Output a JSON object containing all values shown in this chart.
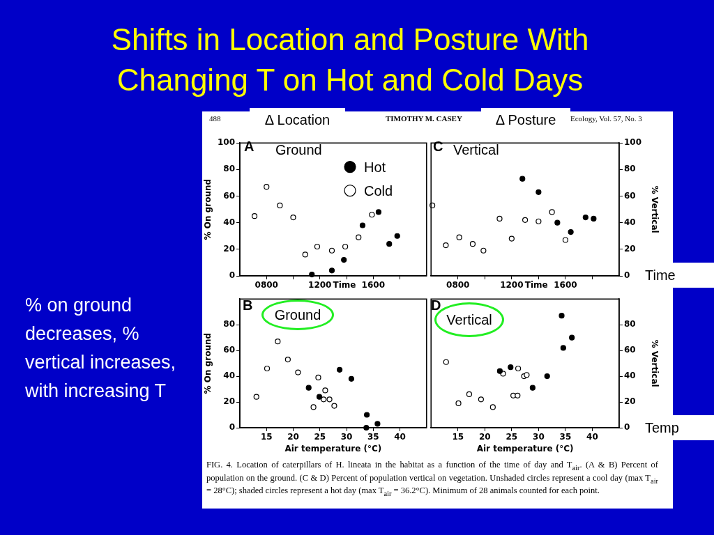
{
  "chart_data": [
    {
      "type": "scatter",
      "title": "Shifts in Location and Posture With Changing T on Hot and Cold Days",
      "xlabel": "Time",
      "ylabel": "% On ground",
      "xlim": [
        600,
        2000
      ],
      "xticks": [
        {
          "value": 800,
          "label": "0800"
        },
        {
          "value": 1000,
          "label": null
        },
        {
          "value": 1200,
          "label": "1200"
        },
        {
          "value": 1400,
          "label": null
        },
        {
          "value": 1600,
          "label": "1600"
        },
        {
          "value": 1800,
          "label": null
        }
      ],
      "ylim": [
        0,
        100
      ],
      "yticks": [
        0,
        20,
        40,
        60,
        80,
        100
      ],
      "marker": "circle",
      "legend": "top",
      "series": [
        {
          "name": "Hot",
          "color": "#000000",
          "x": [
            1140,
            1290,
            1380,
            1520,
            1640,
            1720,
            1780
          ],
          "values": [
            1,
            4,
            12,
            38,
            48,
            24,
            30
          ]
        },
        {
          "name": "Cold",
          "color": "#ffffff",
          "x": [
            710,
            800,
            900,
            1000,
            1090,
            1180,
            1290,
            1390,
            1490,
            1590
          ],
          "values": [
            45,
            67,
            53,
            44,
            16,
            22,
            19,
            22,
            29,
            46
          ]
        }
      ],
      "annotations": [
        "% on ground decreases, % vertical increases,  with increasing T",
        "488",
        "Δ Location",
        "A",
        "Ground"
      ]
    },
    {
      "type": "scatter",
      "xlabel": "Time",
      "y2label": "% Vertical",
      "xlim": [
        600,
        2000
      ],
      "xticks": [
        {
          "value": 800,
          "label": "0800"
        },
        {
          "value": 1000,
          "label": null
        },
        {
          "value": 1200,
          "label": "1200"
        },
        {
          "value": 1400,
          "label": null
        },
        {
          "value": 1600,
          "label": "1600"
        },
        {
          "value": 1800,
          "label": null
        }
      ],
      "y2lim": [
        0,
        100
      ],
      "y2ticks": [
        0,
        20,
        40,
        60,
        80,
        100
      ],
      "marker": "circle",
      "series": [
        {
          "color": "#000000",
          "axis": "y2",
          "x": [
            1280,
            1400,
            1540,
            1640,
            1750,
            1810
          ],
          "values": [
            73,
            63,
            40,
            33,
            44,
            43
          ]
        },
        {
          "color": "#ffffff",
          "axis": "y2",
          "x": [
            610,
            710,
            810,
            910,
            990,
            1110,
            1200,
            1300,
            1400,
            1500,
            1600
          ],
          "values": [
            53,
            23,
            29,
            24,
            19,
            43,
            28,
            42,
            41,
            48,
            27
          ]
        }
      ],
      "annotations": [
        "TIMOTHY M. CASEY",
        "Ecology, Vol. 57, No. 3",
        "Δ Posture",
        "C",
        "Vertical",
        "Time"
      ]
    },
    {
      "type": "scatter",
      "xlabel": "Air temperature (°C)",
      "ylabel": "% On ground",
      "xlim": [
        10,
        45
      ],
      "xticks": [
        15,
        20,
        25,
        30,
        35,
        40
      ],
      "ylim": [
        0,
        100
      ],
      "yticks": [
        0,
        20,
        40,
        60,
        80
      ],
      "marker": "circle",
      "series": [
        {
          "color": "#000000",
          "x": [
            22.9,
            24.9,
            28.7,
            30.9,
            33.8,
            33.7,
            35.8
          ],
          "values": [
            31,
            24,
            45,
            38,
            10,
            0,
            3
          ]
        },
        {
          "color": "#ffffff",
          "x": [
            13.1,
            15.1,
            17.1,
            19.0,
            20.9,
            24.7,
            23.8,
            26.0,
            25.7,
            26.8,
            27.7
          ],
          "values": [
            24,
            46,
            67,
            53,
            43,
            39,
            16,
            29,
            22,
            22,
            17
          ]
        }
      ],
      "annotations": [
        "B",
        "Ground"
      ]
    },
    {
      "type": "scatter",
      "xlabel": "Air temperature (°C)",
      "y2label": "% Vertical",
      "xlim": [
        10,
        45
      ],
      "xticks": [
        15,
        20,
        25,
        30,
        35,
        40
      ],
      "y2lim": [
        0,
        100
      ],
      "y2ticks": [
        0,
        20,
        40,
        60,
        80
      ],
      "marker": "circle",
      "series": [
        {
          "color": "#000000",
          "axis": "y2",
          "x": [
            22.8,
            24.8,
            28.9,
            31.6,
            34.3,
            34.6,
            36.2
          ],
          "values": [
            44,
            47,
            31,
            40,
            87,
            62,
            70
          ]
        },
        {
          "color": "#ffffff",
          "axis": "y2",
          "x": [
            12.8,
            15.1,
            17.1,
            19.3,
            21.5,
            23.4,
            26.2,
            25.3,
            26.1,
            27.3,
            27.8
          ],
          "values": [
            51,
            19,
            26,
            22,
            16,
            42,
            46,
            25,
            25,
            40,
            41
          ]
        }
      ],
      "annotations": [
        "D",
        "Vertical",
        "Temp",
        "FIG. 4.  Location of caterpillars of H. lineata in the habitat as a function of the time of day and T$_{air}$.  (A & B) Percent of population on the ground.  (C & D) Percent of population vertical on vegetation.  Unshaded circles represent a cool day (max T$_{air}$ = 28°C); shaded circles represent a hot day (max T$_{air}$ = 36.2°C).  Minimum of 28 animals counted for each point."
      ]
    }
  ]
}
